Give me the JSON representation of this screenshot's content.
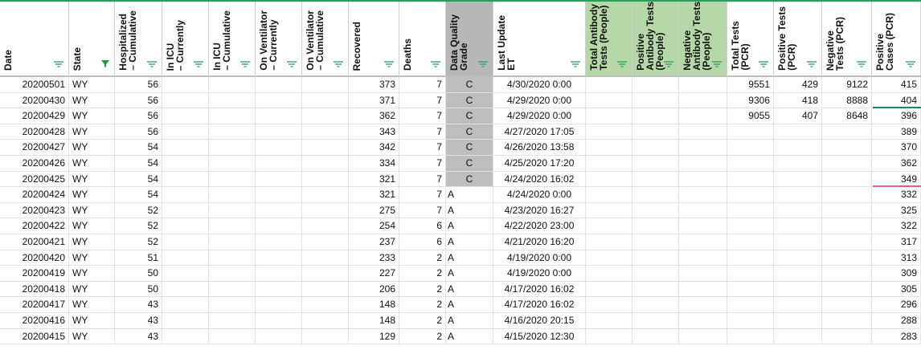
{
  "table": {
    "columns": [
      "Date",
      "State",
      "Hospitalized\n– Cumulative",
      "In ICU\n– Currently",
      "In ICU\n– Cumulative",
      "On Ventilator\n– Currently",
      "On Ventilator\n– Cumulative",
      "Recovered",
      "Deaths",
      "Data Quality\nGrade",
      "Last Update\nET",
      "Total Antibody\nTests (People)",
      "Positive\nAntibody Tests\n(People)",
      "Negative\nAntibody Tests\n(People)",
      "Total Tests\n(PCR)",
      "Positive Tests\n(PCR)",
      "Negative\nTests (PCR)",
      "Positive\nCases (PCR)"
    ],
    "rows": [
      [
        "20200501",
        "WY",
        56,
        null,
        null,
        null,
        null,
        373,
        7,
        "C",
        "4/30/2020 0:00",
        null,
        null,
        null,
        9551,
        429,
        9122,
        415
      ],
      [
        "20200430",
        "WY",
        56,
        null,
        null,
        null,
        null,
        371,
        7,
        "C",
        "4/29/2020 0:00",
        null,
        null,
        null,
        9306,
        418,
        8888,
        404
      ],
      [
        "20200429",
        "WY",
        56,
        null,
        null,
        null,
        null,
        362,
        7,
        "C",
        "4/29/2020 0:00",
        null,
        null,
        null,
        9055,
        407,
        8648,
        396
      ],
      [
        "20200428",
        "WY",
        56,
        null,
        null,
        null,
        null,
        343,
        7,
        "C",
        "4/27/2020 17:05",
        null,
        null,
        null,
        null,
        null,
        null,
        389
      ],
      [
        "20200427",
        "WY",
        54,
        null,
        null,
        null,
        null,
        342,
        7,
        "C",
        "4/26/2020 13:58",
        null,
        null,
        null,
        null,
        null,
        null,
        370
      ],
      [
        "20200426",
        "WY",
        54,
        null,
        null,
        null,
        null,
        334,
        7,
        "C",
        "4/25/2020 17:20",
        null,
        null,
        null,
        null,
        null,
        null,
        362
      ],
      [
        "20200425",
        "WY",
        54,
        null,
        null,
        null,
        null,
        321,
        7,
        "C",
        "4/24/2020 16:02",
        null,
        null,
        null,
        null,
        null,
        null,
        349
      ],
      [
        "20200424",
        "WY",
        54,
        null,
        null,
        null,
        null,
        321,
        7,
        "A",
        "4/24/2020 0:00",
        null,
        null,
        null,
        null,
        null,
        null,
        332
      ],
      [
        "20200423",
        "WY",
        52,
        null,
        null,
        null,
        null,
        275,
        7,
        "A",
        "4/23/2020 16:27",
        null,
        null,
        null,
        null,
        null,
        null,
        325
      ],
      [
        "20200422",
        "WY",
        52,
        null,
        null,
        null,
        null,
        254,
        6,
        "A",
        "4/22/2020 23:00",
        null,
        null,
        null,
        null,
        null,
        null,
        322
      ],
      [
        "20200421",
        "WY",
        52,
        null,
        null,
        null,
        null,
        237,
        6,
        "A",
        "4/21/2020 16:20",
        null,
        null,
        null,
        null,
        null,
        null,
        317
      ],
      [
        "20200420",
        "WY",
        51,
        null,
        null,
        null,
        null,
        233,
        2,
        "A",
        "4/19/2020 0:00",
        null,
        null,
        null,
        null,
        null,
        null,
        313
      ],
      [
        "20200419",
        "WY",
        50,
        null,
        null,
        null,
        null,
        227,
        2,
        "A",
        "4/19/2020 0:00",
        null,
        null,
        null,
        null,
        null,
        null,
        309
      ],
      [
        "20200418",
        "WY",
        50,
        null,
        null,
        null,
        null,
        206,
        2,
        "A",
        "4/17/2020 16:02",
        null,
        null,
        null,
        null,
        null,
        null,
        305
      ],
      [
        "20200417",
        "WY",
        43,
        null,
        null,
        null,
        null,
        148,
        2,
        "A",
        "4/17/2020 16:02",
        null,
        null,
        null,
        null,
        null,
        null,
        296
      ],
      [
        "20200416",
        "WY",
        43,
        null,
        null,
        null,
        null,
        148,
        2,
        "A",
        "4/16/2020 20:15",
        null,
        null,
        null,
        null,
        null,
        null,
        288
      ],
      [
        "20200415",
        "WY",
        43,
        null,
        null,
        null,
        null,
        129,
        2,
        "A",
        "4/15/2020 12:30",
        null,
        null,
        null,
        null,
        null,
        null,
        283
      ]
    ]
  }
}
